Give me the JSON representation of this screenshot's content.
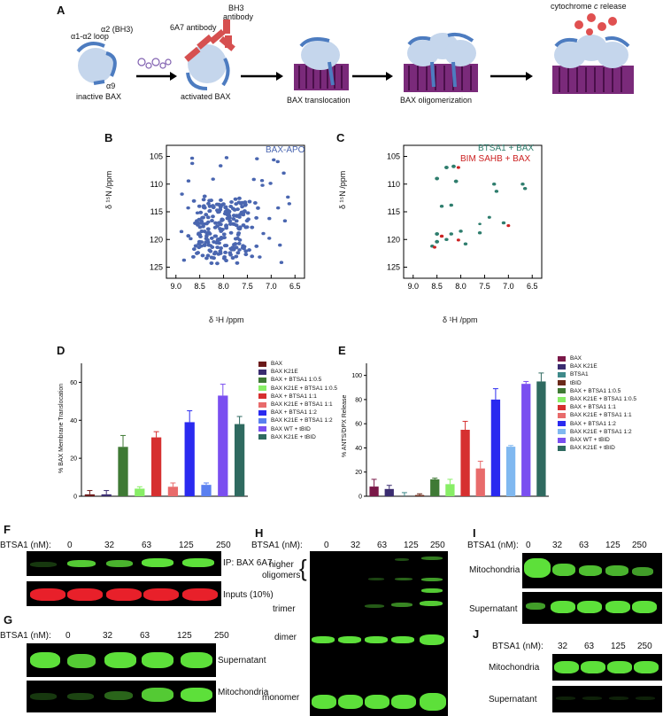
{
  "panelA": {
    "letter": "A",
    "labels": {
      "loop": "α1-α2 loop",
      "bh3_helix": "α2 (BH3)",
      "a9": "α9",
      "inactive": "inactive BAX",
      "ab_6a7": "6A7 antibody",
      "ab_bh3_line1": "BH3",
      "ab_bh3_line2": "antibody",
      "activated": "activated BAX",
      "translocation": "BAX translocation",
      "oligomerization": "BAX oligomerization",
      "cytc_prefix": "cytochrome ",
      "cytc_italic": "c",
      "cytc_suffix": " release"
    }
  },
  "panelB": {
    "letter": "B",
    "legend": "BAX-APO",
    "ylabel": "δ ¹⁵N /ppm",
    "xlabel": "δ ¹H /ppm",
    "yticks": [
      "105",
      "110",
      "115",
      "120",
      "125"
    ],
    "xticks": [
      "9.0",
      "8.5",
      "8.0",
      "7.5",
      "7.0",
      "6.5"
    ],
    "color": "#4a66b0"
  },
  "panelC": {
    "letter": "C",
    "legend1": "BTSA1 + BAX",
    "legend2": "BIM SAHB + BAX",
    "ylabel": "δ ¹⁵N /ppm",
    "xlabel": "δ ¹H /ppm",
    "yticks": [
      "105",
      "110",
      "115",
      "120",
      "125"
    ],
    "xticks": [
      "9.0",
      "8.5",
      "8.0",
      "7.5",
      "7.0",
      "6.5"
    ],
    "color1": "#2e7d6d",
    "color2": "#cc2222"
  },
  "panelD": {
    "letter": "D",
    "ylabel": "% BAX Membrane Translocation",
    "yticks": [
      "0",
      "20",
      "40",
      "60"
    ],
    "chart_data": {
      "type": "bar",
      "categories": [
        "BAX",
        "BAX K21E",
        "BAX + BTSA1 1:0.5",
        "BAX K21E + BTSA1 1:0.5",
        "BAX + BTSA1 1:1",
        "BAX K21E + BTSA1 1:1",
        "BAX + BTSA1 1:2",
        "BAX K21E + BTSA1 1:2",
        "BAX WT + tBID",
        "BAX K21E + tBID"
      ],
      "values": [
        1,
        1,
        26,
        4,
        31,
        5,
        39,
        6,
        53,
        38
      ],
      "errors": [
        2,
        2,
        6,
        1,
        3,
        2,
        6,
        1,
        6,
        4
      ],
      "ylim": [
        0,
        70
      ],
      "colors": [
        "#6b1a1a",
        "#3a2c70",
        "#3f7a35",
        "#88ee66",
        "#d63030",
        "#e86b6b",
        "#2a2af0",
        "#5a80f0",
        "#7a4ff0",
        "#2f6a60"
      ]
    }
  },
  "panelE": {
    "letter": "E",
    "ylabel": "% ANTS/DPX Release",
    "yticks": [
      "0",
      "20",
      "40",
      "60",
      "80",
      "100"
    ],
    "chart_data": {
      "type": "bar",
      "categories": [
        "BAX",
        "BAX K21E",
        "BTSA1",
        "tBID",
        "BAX + BTSA1 1:0.5",
        "BAX K21E + BTSA1 1:0.5",
        "BAX + BTSA1 1:1",
        "BAX K21E + BTSA1 1:1",
        "BAX + BTSA1 1:2",
        "BAX K21E + BTSA1 1:2",
        "BAX WT + tBID",
        "BAX K21E + tBID"
      ],
      "values": [
        8,
        6,
        0,
        1,
        14,
        10,
        55,
        23,
        80,
        41,
        93,
        95
      ],
      "errors": [
        6,
        3,
        3,
        1,
        1,
        4,
        7,
        6,
        9,
        1,
        2,
        7
      ],
      "ylim": [
        0,
        110
      ],
      "colors": [
        "#7a1848",
        "#3a2c70",
        "#3f8a8a",
        "#6b2a1a",
        "#3f7a35",
        "#88ee66",
        "#d63030",
        "#e86b6b",
        "#2a2af0",
        "#80b8f0",
        "#7a4ff0",
        "#2f6a60"
      ]
    }
  },
  "blots": {
    "conc_label": "BTSA1 (nM):",
    "conc_full": [
      "0",
      "32",
      "63",
      "125",
      "250"
    ],
    "conc_J": [
      "32",
      "63",
      "125",
      "250"
    ],
    "F": {
      "letter": "F",
      "top": "IP: BAX 6A7",
      "bottom": "Inputs (10%)"
    },
    "G": {
      "letter": "G",
      "top": "Supernatant",
      "bottom": "Mitochondria"
    },
    "H": {
      "letter": "H",
      "higher1": "higher",
      "higher2": "oligomers",
      "trimer": "trimer",
      "dimer": "dimer",
      "monomer": "monomer"
    },
    "I": {
      "letter": "I",
      "top": "Mitochondria",
      "bottom": "Supernatant"
    },
    "J": {
      "letter": "J",
      "top": "Mitochondria",
      "bottom": "Supernatant"
    },
    "green": "#5de03a",
    "red": "#e8202a"
  }
}
